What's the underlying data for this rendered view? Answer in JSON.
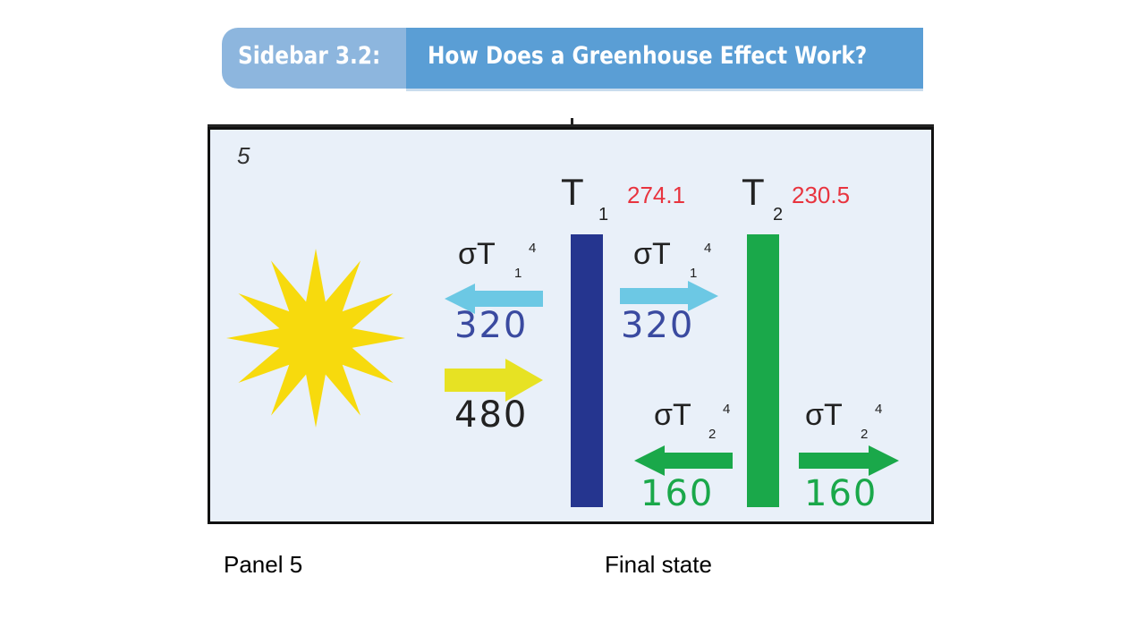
{
  "header": {
    "label": "Sidebar 3.2:",
    "title": "How Does a Greenhouse Effect Work?"
  },
  "panel": {
    "number": "5",
    "layer1": {
      "symbol": "T",
      "subscript": "1",
      "temperature": "274.1",
      "color": "#25358f"
    },
    "layer2": {
      "symbol": "T",
      "subscript": "2",
      "temperature": "230.5",
      "color": "#1aa84a"
    },
    "fluxes": {
      "layer1_left": {
        "sigma": "σT",
        "sub": "1",
        "sup": "4",
        "value": "320",
        "direction": "left",
        "color": "#6cc8e4"
      },
      "layer1_right": {
        "sigma": "σT",
        "sub": "1",
        "sup": "4",
        "value": "320",
        "direction": "right",
        "color": "#6cc8e4"
      },
      "solar": {
        "value": "480",
        "direction": "right",
        "color": "#e7e223"
      },
      "layer2_left": {
        "sigma": "σT",
        "sub": "2",
        "sup": "4",
        "value": "160",
        "direction": "left",
        "color": "#1aa84a"
      },
      "layer2_right": {
        "sigma": "σT",
        "sub": "2",
        "sup": "4",
        "value": "160",
        "direction": "right",
        "color": "#1aa84a"
      }
    },
    "sun_color": "#f7da0d"
  },
  "captions": {
    "left": "Panel 5",
    "right": "Final state"
  }
}
